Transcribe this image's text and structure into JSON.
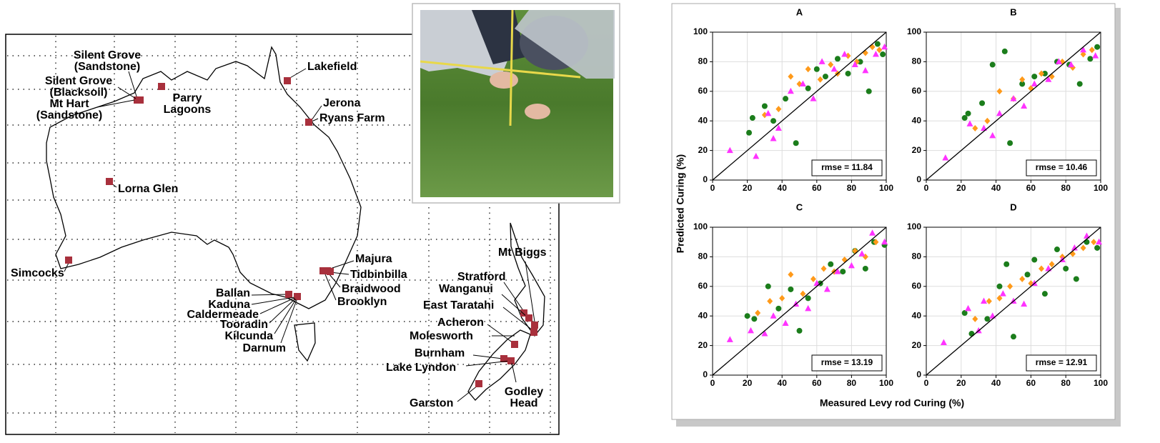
{
  "map": {
    "sites": [
      {
        "label": [
          "Silent Grove",
          "(Sandstone)"
        ]
      },
      {
        "label": [
          "Silent Grove",
          "(Blacksoil)"
        ]
      },
      {
        "label": [
          "Mt Hart",
          "(Sandstone)"
        ]
      },
      {
        "label": [
          "Parry",
          "Lagoons"
        ]
      },
      {
        "label": [
          "Lakefield"
        ]
      },
      {
        "label": [
          "Jerona"
        ]
      },
      {
        "label": [
          "Ryans Farm"
        ]
      },
      {
        "label": [
          "Lorna Glen"
        ]
      },
      {
        "label": [
          "Simcocks"
        ]
      },
      {
        "label": [
          "Majura"
        ]
      },
      {
        "label": [
          "Tidbinbilla"
        ]
      },
      {
        "label": [
          "Braidwood"
        ]
      },
      {
        "label": [
          "Brooklyn"
        ]
      },
      {
        "label": [
          "Ballan"
        ]
      },
      {
        "label": [
          "Kaduna"
        ]
      },
      {
        "label": [
          "Caldermeade"
        ]
      },
      {
        "label": [
          "Tooradin"
        ]
      },
      {
        "label": [
          "Kilcunda"
        ]
      },
      {
        "label": [
          "Darnum"
        ]
      },
      {
        "label": [
          "Mt Biggs"
        ]
      },
      {
        "label": [
          "Stratford"
        ]
      },
      {
        "label": [
          "Wanganui"
        ]
      },
      {
        "label": [
          "East Taratahi"
        ]
      },
      {
        "label": [
          "Acheron"
        ]
      },
      {
        "label": [
          "Molesworth"
        ]
      },
      {
        "label": [
          "Burnham"
        ]
      },
      {
        "label": [
          "Lake Lyndon"
        ]
      },
      {
        "label": [
          "Garston"
        ]
      },
      {
        "label": [
          "Godley",
          "Head"
        ]
      }
    ]
  },
  "axes_labels": {
    "x": "Measured Levy rod Curing (%)",
    "y": "Predicted Curing (%)"
  },
  "chart_data": [
    {
      "type": "scatter",
      "title": "A",
      "annotation": "rmse = 11.84",
      "xlim": [
        0,
        100
      ],
      "ylim": [
        0,
        100
      ],
      "xticks": [
        0,
        20,
        40,
        60,
        80,
        100
      ],
      "yticks": [
        0,
        20,
        40,
        60,
        80,
        100
      ],
      "grid": true,
      "series": [
        {
          "color": "#1b7d1b",
          "marker": "circle",
          "x": [
            21,
            23,
            30,
            35,
            42,
            48,
            55,
            60,
            65,
            72,
            78,
            85,
            90,
            95,
            98
          ],
          "values": [
            32,
            42,
            50,
            40,
            55,
            25,
            62,
            75,
            70,
            82,
            72,
            80,
            60,
            92,
            85
          ]
        },
        {
          "color": "#ff9a1a",
          "marker": "diamond",
          "x": [
            30,
            38,
            45,
            50,
            55,
            62,
            68,
            72,
            78,
            83,
            88,
            92,
            96
          ],
          "values": [
            44,
            48,
            70,
            65,
            75,
            68,
            78,
            72,
            84,
            80,
            86,
            90,
            88
          ]
        },
        {
          "color": "#ff33ff",
          "marker": "triangle",
          "x": [
            10,
            25,
            32,
            35,
            38,
            45,
            52,
            58,
            63,
            70,
            76,
            82,
            88,
            94,
            99
          ],
          "values": [
            20,
            16,
            45,
            28,
            35,
            60,
            65,
            55,
            80,
            75,
            85,
            78,
            74,
            85,
            90
          ]
        }
      ]
    },
    {
      "type": "scatter",
      "title": "B",
      "annotation": "rmse = 10.46",
      "xlim": [
        0,
        100
      ],
      "ylim": [
        0,
        100
      ],
      "xticks": [
        0,
        20,
        40,
        60,
        80,
        100
      ],
      "yticks": [
        0,
        20,
        40,
        60,
        80,
        100
      ],
      "grid": true,
      "series": [
        {
          "color": "#1b7d1b",
          "marker": "circle",
          "x": [
            22,
            24,
            32,
            38,
            45,
            48,
            55,
            62,
            68,
            75,
            82,
            88,
            94,
            98
          ],
          "values": [
            42,
            45,
            52,
            78,
            87,
            25,
            65,
            70,
            72,
            80,
            78,
            65,
            82,
            90
          ]
        },
        {
          "color": "#ff9a1a",
          "marker": "diamond",
          "x": [
            28,
            35,
            42,
            50,
            55,
            60,
            66,
            72,
            78,
            84,
            90,
            95
          ],
          "values": [
            35,
            40,
            60,
            55,
            68,
            62,
            72,
            70,
            80,
            76,
            85,
            88
          ]
        },
        {
          "color": "#ff33ff",
          "marker": "triangle",
          "x": [
            11,
            25,
            33,
            38,
            42,
            50,
            56,
            62,
            70,
            76,
            83,
            90,
            97
          ],
          "values": [
            15,
            38,
            35,
            30,
            45,
            55,
            50,
            65,
            68,
            80,
            78,
            88,
            84
          ]
        }
      ]
    },
    {
      "type": "scatter",
      "title": "C",
      "annotation": "rmse = 13.19",
      "xlim": [
        0,
        100
      ],
      "ylim": [
        0,
        100
      ],
      "xticks": [
        0,
        20,
        40,
        60,
        80,
        100
      ],
      "yticks": [
        0,
        20,
        40,
        60,
        80,
        100
      ],
      "grid": true,
      "series": [
        {
          "color": "#1b7d1b",
          "marker": "circle",
          "x": [
            20,
            24,
            32,
            38,
            45,
            50,
            55,
            62,
            68,
            75,
            82,
            88,
            93,
            99
          ],
          "values": [
            40,
            38,
            60,
            45,
            58,
            30,
            52,
            62,
            75,
            70,
            84,
            72,
            90,
            88
          ]
        },
        {
          "color": "#ff9a1a",
          "marker": "diamond",
          "x": [
            26,
            33,
            40,
            45,
            52,
            58,
            64,
            70,
            76,
            82,
            88,
            94
          ],
          "values": [
            42,
            50,
            52,
            68,
            55,
            65,
            72,
            70,
            78,
            84,
            80,
            90
          ]
        },
        {
          "color": "#ff33ff",
          "marker": "triangle",
          "x": [
            10,
            22,
            30,
            35,
            42,
            48,
            55,
            60,
            66,
            72,
            80,
            86,
            92,
            99
          ],
          "values": [
            24,
            30,
            28,
            40,
            35,
            48,
            45,
            62,
            58,
            70,
            74,
            82,
            96,
            90
          ]
        }
      ]
    },
    {
      "type": "scatter",
      "title": "D",
      "annotation": "rmse = 12.91",
      "xlim": [
        0,
        100
      ],
      "ylim": [
        0,
        100
      ],
      "xticks": [
        0,
        20,
        40,
        60,
        80,
        100
      ],
      "yticks": [
        0,
        20,
        40,
        60,
        80,
        100
      ],
      "grid": true,
      "series": [
        {
          "color": "#1b7d1b",
          "marker": "circle",
          "x": [
            22,
            26,
            35,
            42,
            46,
            50,
            58,
            62,
            68,
            75,
            80,
            86,
            92,
            98
          ],
          "values": [
            42,
            28,
            38,
            60,
            75,
            26,
            68,
            78,
            55,
            85,
            72,
            65,
            90,
            86
          ]
        },
        {
          "color": "#ff9a1a",
          "marker": "diamond",
          "x": [
            28,
            36,
            42,
            48,
            55,
            60,
            66,
            72,
            78,
            84,
            90,
            96
          ],
          "values": [
            38,
            50,
            52,
            60,
            65,
            62,
            72,
            75,
            80,
            82,
            86,
            90
          ]
        },
        {
          "color": "#ff33ff",
          "marker": "triangle",
          "x": [
            10,
            24,
            30,
            33,
            38,
            44,
            50,
            56,
            62,
            70,
            78,
            85,
            92,
            99
          ],
          "values": [
            22,
            45,
            30,
            50,
            40,
            55,
            50,
            48,
            62,
            72,
            78,
            86,
            94,
            90
          ]
        }
      ]
    }
  ]
}
